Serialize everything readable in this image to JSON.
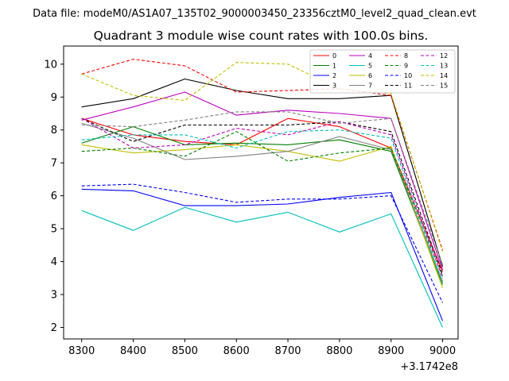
{
  "chart_data": {
    "type": "line",
    "suptitle": "Data file: modeM0/AS1A07_135T02_9000003450_23356cztM0_level2_quad_clean.evt",
    "title": "Quadrant 3 module wise count rates with 100.0s bins.",
    "xlabel": "",
    "ylabel": "",
    "x_offset_label": "+3.1742e8",
    "x": [
      8300,
      8400,
      8500,
      8600,
      8700,
      8800,
      8900,
      9000
    ],
    "xlim": [
      8265,
      9030
    ],
    "ylim": [
      1.65,
      10.55
    ],
    "xticks": [
      "8300",
      "8400",
      "8500",
      "8600",
      "8700",
      "8800",
      "8900",
      "9000"
    ],
    "yticks": [
      "2",
      "3",
      "4",
      "5",
      "6",
      "7",
      "8",
      "9",
      "10"
    ],
    "grid": false,
    "legend_position": "top-right",
    "series": [
      {
        "name": "0",
        "color": "#ff0000",
        "dash": "solid",
        "values": [
          8.35,
          7.85,
          7.65,
          7.55,
          8.35,
          8.1,
          7.45,
          3.7
        ]
      },
      {
        "name": "1",
        "color": "#008000",
        "dash": "solid",
        "values": [
          7.6,
          8.1,
          7.55,
          7.6,
          7.55,
          7.7,
          7.35,
          3.3
        ]
      },
      {
        "name": "2",
        "color": "#0000ff",
        "dash": "solid",
        "values": [
          6.2,
          6.15,
          5.7,
          5.7,
          5.75,
          5.95,
          6.1,
          2.2
        ]
      },
      {
        "name": "3",
        "color": "#000000",
        "dash": "solid",
        "values": [
          8.7,
          8.95,
          9.55,
          9.2,
          8.95,
          8.95,
          9.05,
          3.85
        ]
      },
      {
        "name": "4",
        "color": "#bf00bf",
        "dash": "solid",
        "values": [
          8.3,
          8.7,
          9.15,
          8.45,
          8.6,
          8.5,
          8.35,
          3.75
        ]
      },
      {
        "name": "5",
        "color": "#00bfbf",
        "dash": "solid",
        "values": [
          5.55,
          4.95,
          5.65,
          5.2,
          5.5,
          4.9,
          5.45,
          2.0
        ]
      },
      {
        "name": "6",
        "color": "#bfbf00",
        "dash": "solid",
        "values": [
          7.55,
          7.3,
          7.4,
          7.55,
          7.35,
          7.05,
          7.5,
          3.2
        ]
      },
      {
        "name": "7",
        "color": "#808080",
        "dash": "solid",
        "values": [
          8.2,
          7.75,
          7.1,
          7.2,
          7.35,
          7.8,
          7.4,
          3.4
        ]
      },
      {
        "name": "8",
        "color": "#ff0000",
        "dash": "dashed",
        "values": [
          9.7,
          10.15,
          9.95,
          9.15,
          9.2,
          9.25,
          9.05,
          4.35
        ]
      },
      {
        "name": "9",
        "color": "#008000",
        "dash": "dashed",
        "values": [
          7.35,
          7.45,
          7.2,
          7.95,
          7.05,
          7.3,
          7.45,
          3.55
        ]
      },
      {
        "name": "10",
        "color": "#0000ff",
        "dash": "dashed",
        "values": [
          6.3,
          6.35,
          6.1,
          5.8,
          5.9,
          5.9,
          6.0,
          2.75
        ]
      },
      {
        "name": "11",
        "color": "#000000",
        "dash": "dashed",
        "values": [
          8.35,
          7.65,
          8.15,
          8.15,
          8.15,
          8.25,
          7.95,
          3.6
        ]
      },
      {
        "name": "12",
        "color": "#bf00bf",
        "dash": "dashed",
        "values": [
          8.35,
          7.45,
          7.55,
          8.05,
          7.85,
          8.25,
          7.85,
          3.5
        ]
      },
      {
        "name": "13",
        "color": "#00bfbf",
        "dash": "dashed",
        "values": [
          7.7,
          7.85,
          7.85,
          7.45,
          7.95,
          8.0,
          7.75,
          3.35
        ]
      },
      {
        "name": "14",
        "color": "#bfbf00",
        "dash": "dashed",
        "values": [
          9.7,
          9.05,
          8.9,
          10.05,
          10.0,
          9.25,
          9.1,
          4.3
        ]
      },
      {
        "name": "15",
        "color": "#808080",
        "dash": "dashed",
        "values": [
          8.15,
          8.1,
          8.3,
          8.55,
          8.55,
          8.2,
          8.35,
          3.9
        ]
      }
    ]
  }
}
